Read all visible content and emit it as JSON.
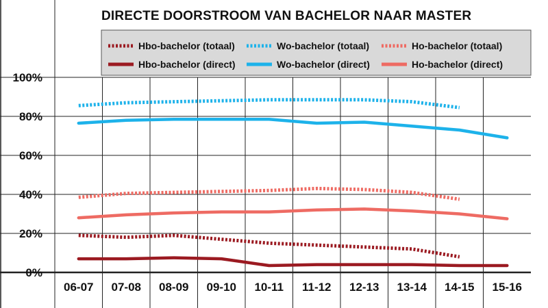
{
  "chart_data": {
    "type": "line",
    "title": "DIRECTE DOORSTROOM VAN BACHELOR NAAR MASTER",
    "xlabel": "",
    "ylabel": "",
    "categories": [
      "06-07",
      "07-08",
      "08-09",
      "09-10",
      "10-11",
      "11-12",
      "12-13",
      "13-14",
      "14-15",
      "15-16"
    ],
    "yticks": [
      "0%",
      "20%",
      "40%",
      "60%",
      "80%",
      "100%"
    ],
    "ylim": [
      0,
      100
    ],
    "grid": true,
    "legend_position": "top",
    "series": [
      {
        "name": "Hbo-bachelor (totaal)",
        "color": "#9b1a21",
        "style": "dotted",
        "values": [
          19,
          18,
          19,
          17,
          15,
          14,
          13,
          12,
          8,
          null
        ]
      },
      {
        "name": "Wo-bachelor (totaal)",
        "color": "#1db2ea",
        "style": "dotted",
        "values": [
          85.5,
          87,
          87.5,
          88,
          88.5,
          88.5,
          88.5,
          87.5,
          84.5,
          null
        ]
      },
      {
        "name": "Ho-bachelor (totaal)",
        "color": "#ee6b63",
        "style": "dotted",
        "values": [
          38.5,
          40.5,
          41,
          41.5,
          42,
          43,
          42.5,
          41,
          37.5,
          null
        ]
      },
      {
        "name": "Hbo-bachelor (direct)",
        "color": "#9b1a21",
        "style": "solid",
        "values": [
          7,
          7,
          7.5,
          7,
          3.5,
          4,
          4,
          4,
          3.5,
          3.5
        ]
      },
      {
        "name": "Wo-bachelor (direct)",
        "color": "#1db2ea",
        "style": "solid",
        "values": [
          76.5,
          78,
          78.5,
          78.5,
          78.5,
          76.5,
          77,
          75,
          73,
          69
        ]
      },
      {
        "name": "Ho-bachelor (direct)",
        "color": "#ee6b63",
        "style": "solid",
        "values": [
          28,
          29.5,
          30.5,
          31,
          31,
          32,
          32.5,
          31.5,
          30,
          27.5
        ]
      }
    ]
  }
}
